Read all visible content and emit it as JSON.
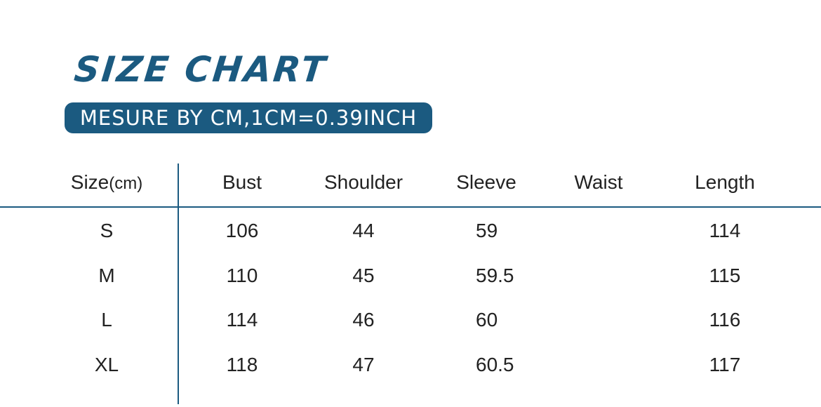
{
  "title": "SIZE CHART",
  "subtitle": "MESURE BY CM,1CM=0.39INCH",
  "table": {
    "headers": [
      {
        "main": "Size",
        "unit": "(cm)"
      },
      {
        "main": "Bust"
      },
      {
        "main": "Shoulder"
      },
      {
        "main": "Sleeve"
      },
      {
        "main": "Waist"
      },
      {
        "main": "Length"
      }
    ],
    "rows": [
      [
        "S",
        "106",
        "44",
        "59",
        "",
        "114"
      ],
      [
        "M",
        "110",
        "45",
        "59.5",
        "",
        "115"
      ],
      [
        "L",
        "114",
        "46",
        "60",
        "",
        "116"
      ],
      [
        "XL",
        "118",
        "47",
        "60.5",
        "",
        "117"
      ]
    ]
  },
  "colors": {
    "accent": "#1b5a80"
  }
}
